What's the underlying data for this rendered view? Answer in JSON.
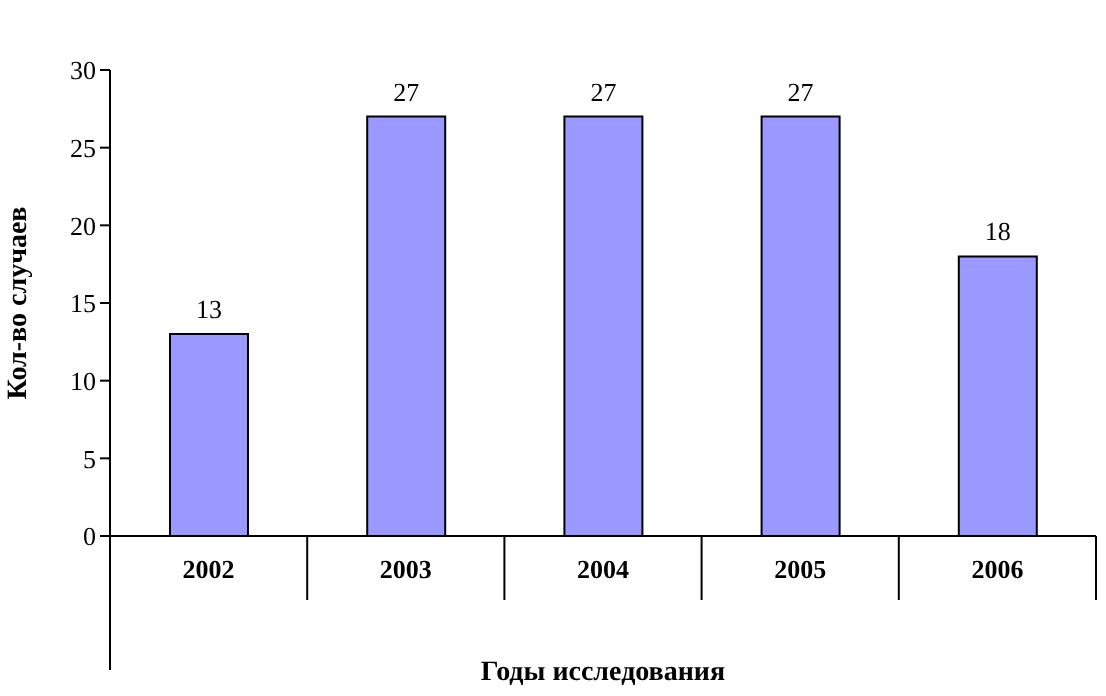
{
  "chart_data": {
    "type": "bar",
    "xlabel": "Годы исследования",
    "ylabel": "Кол-во случаев",
    "categories": [
      "2002",
      "2003",
      "2004",
      "2005",
      "2006"
    ],
    "values": [
      13,
      27,
      27,
      27,
      18
    ],
    "color": "#9999ff",
    "ylim": [
      0,
      30
    ],
    "yticks": [
      0,
      5,
      10,
      15,
      20,
      25,
      30
    ],
    "data_labels": true,
    "grid": false
  }
}
